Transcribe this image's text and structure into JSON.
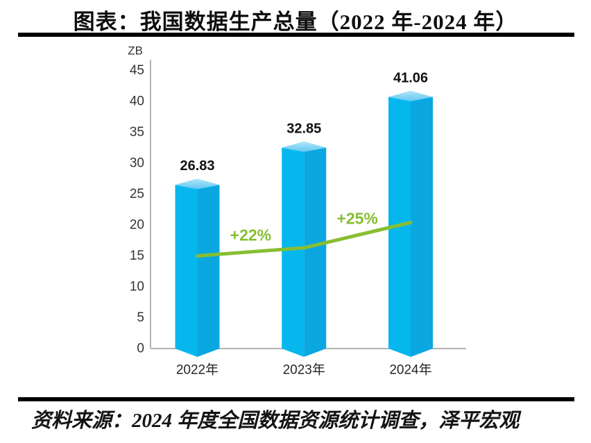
{
  "title": "图表：我国数据生产总量（2022 年-2024 年）",
  "source": "资料来源：2024 年度全国数据资源统计调查，泽平宏观",
  "chart_data": {
    "type": "bar",
    "title": "图表：我国数据生产总量（2022 年-2024 年）",
    "ylabel": "ZB",
    "xlabel": "",
    "categories": [
      "2022年",
      "2023年",
      "2024年"
    ],
    "values": [
      26.83,
      32.85,
      41.06
    ],
    "value_labels": [
      "26.83",
      "32.85",
      "41.06"
    ],
    "ylim": [
      0,
      45
    ],
    "ytick_step": 5,
    "grid": false,
    "legend": "none",
    "growth_line": {
      "labels": [
        "+22%",
        "+25%"
      ],
      "anchor_values": [
        15.0,
        16.3,
        20.4
      ]
    },
    "colors": {
      "bar_left": "#06b7ee",
      "bar_right": "#0aa7e0",
      "bar_top_light": "#b3e5fa",
      "bar_top_dark": "#62c8f0",
      "line_green": "#87be33",
      "axis_gray": "#a8a8a8",
      "tick_text": "#333333",
      "label_dark": "#111111"
    }
  }
}
